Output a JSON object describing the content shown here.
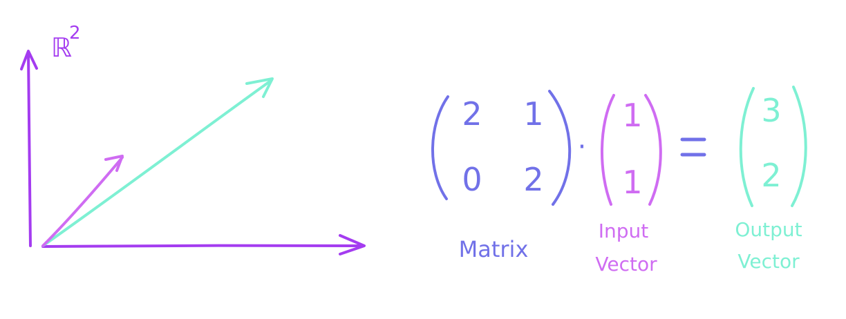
{
  "colors": {
    "axis": "#a43cf0",
    "input": "#cf6cf2",
    "output": "#7ef0d3",
    "matrix": "#7171e8"
  },
  "space_label": "ℝ",
  "space_exponent": "2",
  "matrix": {
    "rows": [
      [
        "2",
        "1"
      ],
      [
        "0",
        "2"
      ]
    ],
    "label": "Matrix"
  },
  "dot_operator": "·",
  "input_vector": {
    "values": [
      "1",
      "1"
    ],
    "label_line1": "Input",
    "label_line2": "Vector"
  },
  "equals_sign": "=",
  "output_vector": {
    "values": [
      "3",
      "2"
    ],
    "label_line1": "Output",
    "label_line2": "Vector"
  }
}
